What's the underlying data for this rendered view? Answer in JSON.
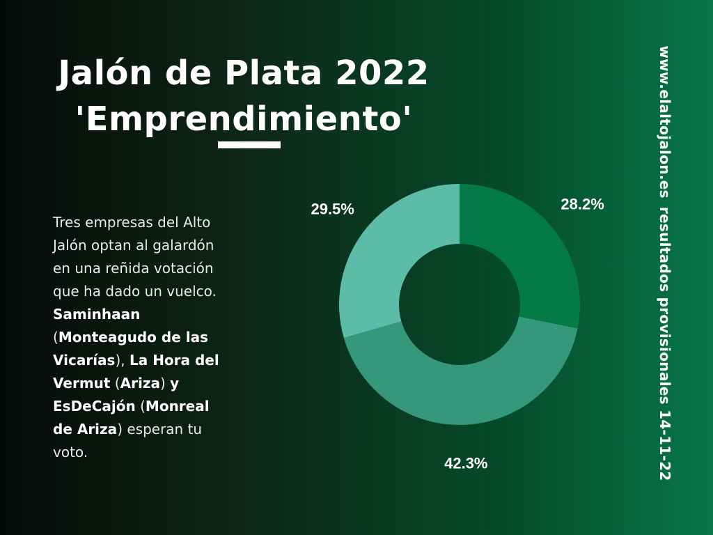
{
  "title": {
    "line1": "Jalón de Plata 2022",
    "line2": "'Emprendimiento'"
  },
  "description": {
    "lines": [
      {
        "parts": [
          {
            "text": "Tres empresas del Alto",
            "bold": false
          }
        ]
      },
      {
        "parts": [
          {
            "text": "Jalón optan al galardón",
            "bold": false
          }
        ]
      },
      {
        "parts": [
          {
            "text": "en una reñida votación",
            "bold": false
          }
        ]
      },
      {
        "parts": [
          {
            "text": "que ha dado un vuelco.",
            "bold": false
          }
        ]
      },
      {
        "parts": [
          {
            "text": "Saminhaan",
            "bold": true
          }
        ]
      },
      {
        "parts": [
          {
            "text": "(",
            "bold": false
          },
          {
            "text": "Monteagudo de las",
            "bold": true
          }
        ]
      },
      {
        "parts": [
          {
            "text": "Vicarías",
            "bold": true
          },
          {
            "text": "), ",
            "bold": false
          },
          {
            "text": "La Hora del",
            "bold": true
          }
        ]
      },
      {
        "parts": [
          {
            "text": "Vermut",
            "bold": true
          },
          {
            "text": " (",
            "bold": false
          },
          {
            "text": "Ariza",
            "bold": true
          },
          {
            "text": ") ",
            "bold": false
          },
          {
            "text": "y",
            "bold": true
          }
        ]
      },
      {
        "parts": [
          {
            "text": "EsDeCajón",
            "bold": true
          },
          {
            "text": " (",
            "bold": false
          },
          {
            "text": "Monreal",
            "bold": true
          }
        ]
      },
      {
        "parts": [
          {
            "text": "de Ariza",
            "bold": true
          },
          {
            "text": ") esperan tu",
            "bold": false
          }
        ]
      },
      {
        "parts": [
          {
            "text": "voto.",
            "bold": false
          }
        ]
      }
    ]
  },
  "side_text": {
    "website": "www.elaltojalon.es",
    "note": "resultados provisionales 14-11-22"
  },
  "colors": {
    "background_left": "#060a07",
    "background_right": "#08764a",
    "slice_1": "#047a46",
    "slice_2": "#35987a",
    "slice_3": "#5cbca7",
    "text": "#ffffff"
  },
  "chart_data": {
    "type": "pie",
    "donut": true,
    "start_angle": "12 o'clock",
    "direction": "clockwise",
    "slices": [
      {
        "value": 28.2,
        "label": "28.2%",
        "color": "#047a46"
      },
      {
        "value": 42.3,
        "label": "42.3%",
        "color": "#35987a"
      },
      {
        "value": 29.5,
        "label": "29.5%",
        "color": "#5cbca7"
      }
    ]
  }
}
